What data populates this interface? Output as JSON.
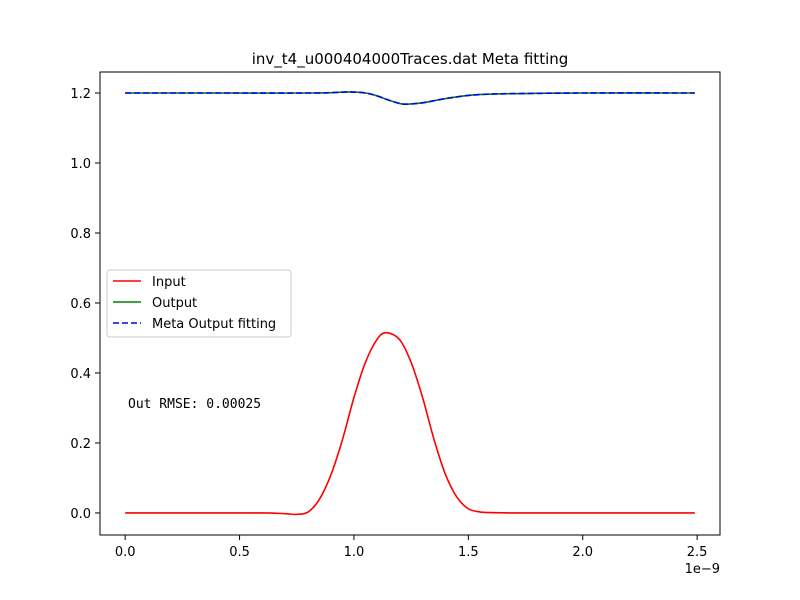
{
  "chart_data": {
    "type": "line",
    "title": "inv_t4_u000404000Traces.dat Meta fitting",
    "xlabel": "",
    "ylabel": "",
    "x_offset_label": "1e−9",
    "xlim": [
      -1.1e-10,
      2.6e-09
    ],
    "ylim": [
      -0.063,
      1.26
    ],
    "x_ticks": [
      0.0,
      5e-10,
      1e-09,
      1.5e-09,
      2e-09,
      2.5e-09
    ],
    "x_tick_labels": [
      "0.0",
      "0.5",
      "1.0",
      "1.5",
      "2.0",
      "2.5"
    ],
    "y_ticks": [
      0.0,
      0.2,
      0.4,
      0.6,
      0.8,
      1.0,
      1.2
    ],
    "y_tick_labels": [
      "0.0",
      "0.2",
      "0.4",
      "0.6",
      "0.8",
      "1.0",
      "1.2"
    ],
    "grid": false,
    "legend_position": "center-left",
    "annotation": "Out RMSE: 0.00025",
    "series": [
      {
        "name": "Input",
        "color": "#ff0000",
        "style": "solid",
        "x": [
          0.0,
          2e-10,
          4e-10,
          6e-10,
          7e-10,
          7.5e-10,
          8e-10,
          8.5e-10,
          9e-10,
          9.5e-10,
          1e-09,
          1.05e-09,
          1.1e-09,
          1.14e-09,
          1.2e-09,
          1.25e-09,
          1.3e-09,
          1.35e-09,
          1.4e-09,
          1.45e-09,
          1.5e-09,
          1.55e-09,
          1.6e-09,
          1.7e-09,
          1.8e-09,
          2e-09,
          2.2e-09,
          2.49e-09
        ],
        "y": [
          0.0,
          0.0,
          0.0,
          0.0,
          -0.002,
          -0.004,
          0.003,
          0.04,
          0.11,
          0.21,
          0.33,
          0.43,
          0.495,
          0.515,
          0.495,
          0.43,
          0.33,
          0.21,
          0.11,
          0.045,
          0.012,
          0.003,
          0.001,
          0.0,
          0.0,
          0.0,
          0.0,
          0.0
        ]
      },
      {
        "name": "Output",
        "color": "#008000",
        "style": "solid",
        "x": [
          0.0,
          4e-10,
          8e-10,
          9e-10,
          9.8e-10,
          1.05e-09,
          1.1e-09,
          1.15e-09,
          1.2e-09,
          1.23e-09,
          1.3e-09,
          1.4e-09,
          1.5e-09,
          1.6e-09,
          1.8e-09,
          2e-09,
          2.49e-09
        ],
        "y": [
          1.2,
          1.2,
          1.2,
          1.201,
          1.203,
          1.2,
          1.192,
          1.18,
          1.17,
          1.168,
          1.172,
          1.184,
          1.193,
          1.197,
          1.199,
          1.2,
          1.2
        ]
      },
      {
        "name": "Meta Output fitting",
        "color": "#0000ff",
        "style": "dashed",
        "x": [
          0.0,
          4e-10,
          8e-10,
          9e-10,
          9.8e-10,
          1.05e-09,
          1.1e-09,
          1.15e-09,
          1.2e-09,
          1.23e-09,
          1.3e-09,
          1.4e-09,
          1.5e-09,
          1.6e-09,
          1.8e-09,
          2e-09,
          2.49e-09
        ],
        "y": [
          1.2,
          1.2,
          1.2,
          1.201,
          1.203,
          1.2,
          1.192,
          1.18,
          1.17,
          1.168,
          1.172,
          1.184,
          1.193,
          1.197,
          1.199,
          1.2,
          1.2
        ]
      }
    ]
  }
}
